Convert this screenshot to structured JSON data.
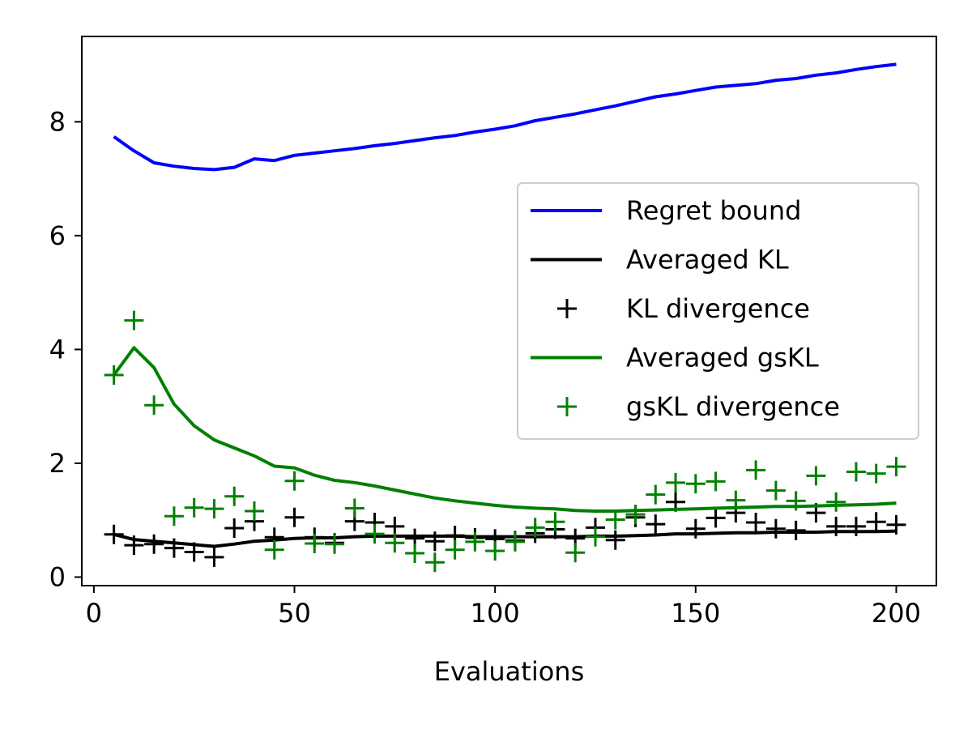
{
  "chart_data": {
    "type": "line",
    "title": "",
    "xlabel": "Evaluations",
    "ylabel": "",
    "xlim": [
      -3,
      210
    ],
    "ylim": [
      -0.15,
      9.5
    ],
    "xticks": [
      0,
      50,
      100,
      150,
      200
    ],
    "yticks": [
      0,
      2,
      4,
      6,
      8
    ],
    "grid": false,
    "legend_position": "center-right",
    "series": [
      {
        "name": "Regret bound",
        "style": "line",
        "color": "#0000ff",
        "x": [
          5,
          10,
          15,
          20,
          25,
          30,
          35,
          40,
          45,
          50,
          55,
          60,
          65,
          70,
          75,
          80,
          85,
          90,
          95,
          100,
          105,
          110,
          115,
          120,
          125,
          130,
          135,
          140,
          145,
          150,
          155,
          160,
          165,
          170,
          175,
          180,
          185,
          190,
          195,
          200
        ],
        "y": [
          7.74,
          7.49,
          7.28,
          7.22,
          7.18,
          7.16,
          7.2,
          7.35,
          7.32,
          7.41,
          7.45,
          7.49,
          7.53,
          7.58,
          7.62,
          7.67,
          7.72,
          7.76,
          7.82,
          7.87,
          7.93,
          8.02,
          8.08,
          8.14,
          8.21,
          8.28,
          8.36,
          8.44,
          8.49,
          8.55,
          8.61,
          8.64,
          8.67,
          8.73,
          8.76,
          8.82,
          8.86,
          8.92,
          8.97,
          9.01
        ]
      },
      {
        "name": "Averaged KL",
        "style": "line",
        "color": "#000000",
        "x": [
          5,
          10,
          15,
          20,
          25,
          30,
          35,
          40,
          45,
          50,
          55,
          60,
          65,
          70,
          75,
          80,
          85,
          90,
          95,
          100,
          105,
          110,
          115,
          120,
          125,
          130,
          135,
          140,
          145,
          150,
          155,
          160,
          165,
          170,
          175,
          180,
          185,
          190,
          195,
          200
        ],
        "y": [
          0.75,
          0.66,
          0.63,
          0.6,
          0.57,
          0.54,
          0.58,
          0.63,
          0.65,
          0.68,
          0.69,
          0.69,
          0.71,
          0.72,
          0.72,
          0.72,
          0.72,
          0.72,
          0.71,
          0.71,
          0.71,
          0.71,
          0.71,
          0.71,
          0.72,
          0.72,
          0.73,
          0.74,
          0.76,
          0.76,
          0.77,
          0.78,
          0.78,
          0.79,
          0.79,
          0.79,
          0.8,
          0.8,
          0.8,
          0.81
        ]
      },
      {
        "name": "KL divergence",
        "style": "marker",
        "color": "#000000",
        "x": [
          5,
          10,
          15,
          20,
          25,
          30,
          35,
          40,
          45,
          50,
          55,
          60,
          65,
          70,
          75,
          80,
          85,
          90,
          95,
          100,
          105,
          110,
          115,
          120,
          125,
          130,
          135,
          140,
          145,
          150,
          155,
          160,
          165,
          170,
          175,
          180,
          185,
          190,
          195,
          200
        ],
        "y": [
          0.75,
          0.56,
          0.58,
          0.51,
          0.44,
          0.35,
          0.86,
          0.98,
          0.7,
          1.05,
          0.7,
          0.6,
          0.98,
          0.96,
          0.89,
          0.68,
          0.63,
          0.73,
          0.69,
          0.67,
          0.64,
          0.77,
          0.84,
          0.68,
          0.87,
          0.65,
          1.05,
          0.93,
          1.32,
          0.85,
          1.04,
          1.13,
          0.96,
          0.85,
          0.82,
          1.13,
          0.89,
          0.89,
          0.97,
          0.92
        ]
      },
      {
        "name": "Averaged gsKL",
        "style": "line",
        "color": "#008000",
        "x": [
          5,
          10,
          15,
          20,
          25,
          30,
          35,
          40,
          45,
          50,
          55,
          60,
          65,
          70,
          75,
          80,
          85,
          90,
          95,
          100,
          105,
          110,
          115,
          120,
          125,
          130,
          135,
          140,
          145,
          150,
          155,
          160,
          165,
          170,
          175,
          180,
          185,
          190,
          195,
          200
        ],
        "y": [
          3.55,
          4.03,
          3.68,
          3.04,
          2.66,
          2.41,
          2.27,
          2.13,
          1.95,
          1.92,
          1.79,
          1.7,
          1.66,
          1.6,
          1.53,
          1.46,
          1.39,
          1.34,
          1.3,
          1.26,
          1.23,
          1.21,
          1.2,
          1.17,
          1.16,
          1.16,
          1.17,
          1.18,
          1.19,
          1.2,
          1.21,
          1.22,
          1.23,
          1.24,
          1.24,
          1.25,
          1.26,
          1.27,
          1.28,
          1.3
        ]
      },
      {
        "name": "gsKL divergence",
        "style": "marker",
        "color": "#008000",
        "x": [
          5,
          10,
          15,
          20,
          25,
          30,
          35,
          40,
          45,
          50,
          55,
          60,
          65,
          70,
          75,
          80,
          85,
          90,
          95,
          100,
          105,
          110,
          115,
          120,
          125,
          130,
          135,
          140,
          145,
          150,
          155,
          160,
          165,
          170,
          175,
          180,
          185,
          190,
          195,
          200
        ],
        "y": [
          3.55,
          4.51,
          3.02,
          1.07,
          1.22,
          1.2,
          1.42,
          1.16,
          0.48,
          1.69,
          0.59,
          0.58,
          1.21,
          0.76,
          0.6,
          0.42,
          0.26,
          0.48,
          0.62,
          0.46,
          0.62,
          0.87,
          0.97,
          0.43,
          0.71,
          1.01,
          1.1,
          1.45,
          1.66,
          1.64,
          1.68,
          1.35,
          1.88,
          1.52,
          1.34,
          1.78,
          1.32,
          1.85,
          1.82,
          1.94
        ]
      }
    ]
  }
}
